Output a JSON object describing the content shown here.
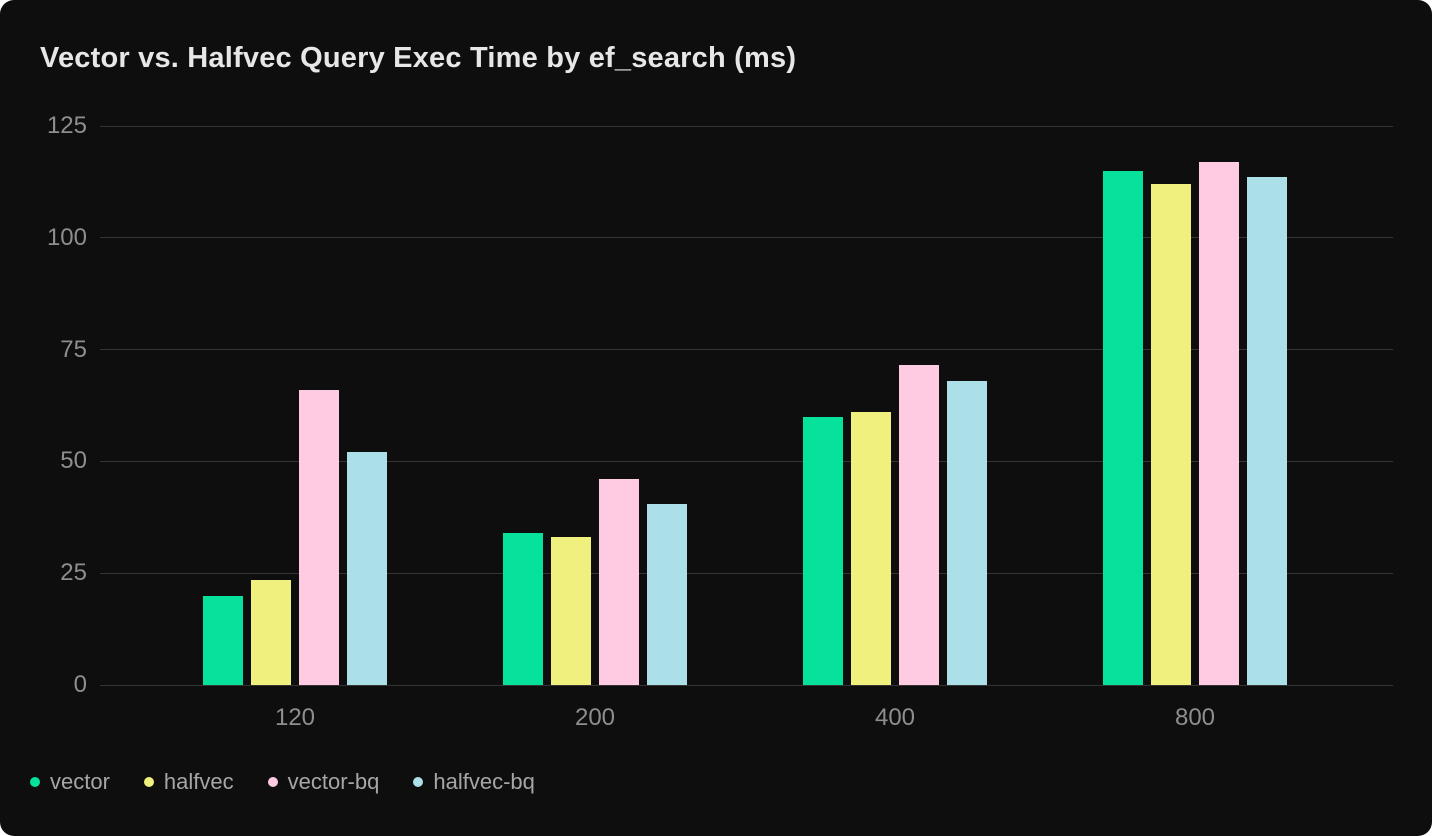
{
  "page": {
    "background": "#ffffff",
    "card_background": "#0e0e0e",
    "gridline_color": "#343434",
    "axis_label_color": "#8e8e8e",
    "legend_label_color": "#a6a6a6",
    "title_color": "#e7e7e7"
  },
  "chart_data": {
    "type": "bar",
    "title": "Vector vs. Halfvec Query Exec Time by ef_search (ms)",
    "xlabel": "",
    "ylabel": "",
    "categories": [
      "120",
      "200",
      "400",
      "800"
    ],
    "series": [
      {
        "name": "vector",
        "color": "#06e29b",
        "values": [
          20,
          34,
          60,
          115
        ]
      },
      {
        "name": "halfvec",
        "color": "#eff07d",
        "values": [
          23.5,
          33,
          61,
          112
        ]
      },
      {
        "name": "vector-bq",
        "color": "#ffcbe3",
        "values": [
          66,
          46,
          71.5,
          117
        ]
      },
      {
        "name": "halfvec-bq",
        "color": "#abe0e9",
        "values": [
          52,
          40.5,
          68,
          113.5
        ]
      }
    ],
    "ylim": [
      0,
      125
    ],
    "yticks": [
      0,
      25,
      50,
      75,
      100,
      125
    ],
    "grid": true,
    "legend_position": "bottom-left"
  }
}
